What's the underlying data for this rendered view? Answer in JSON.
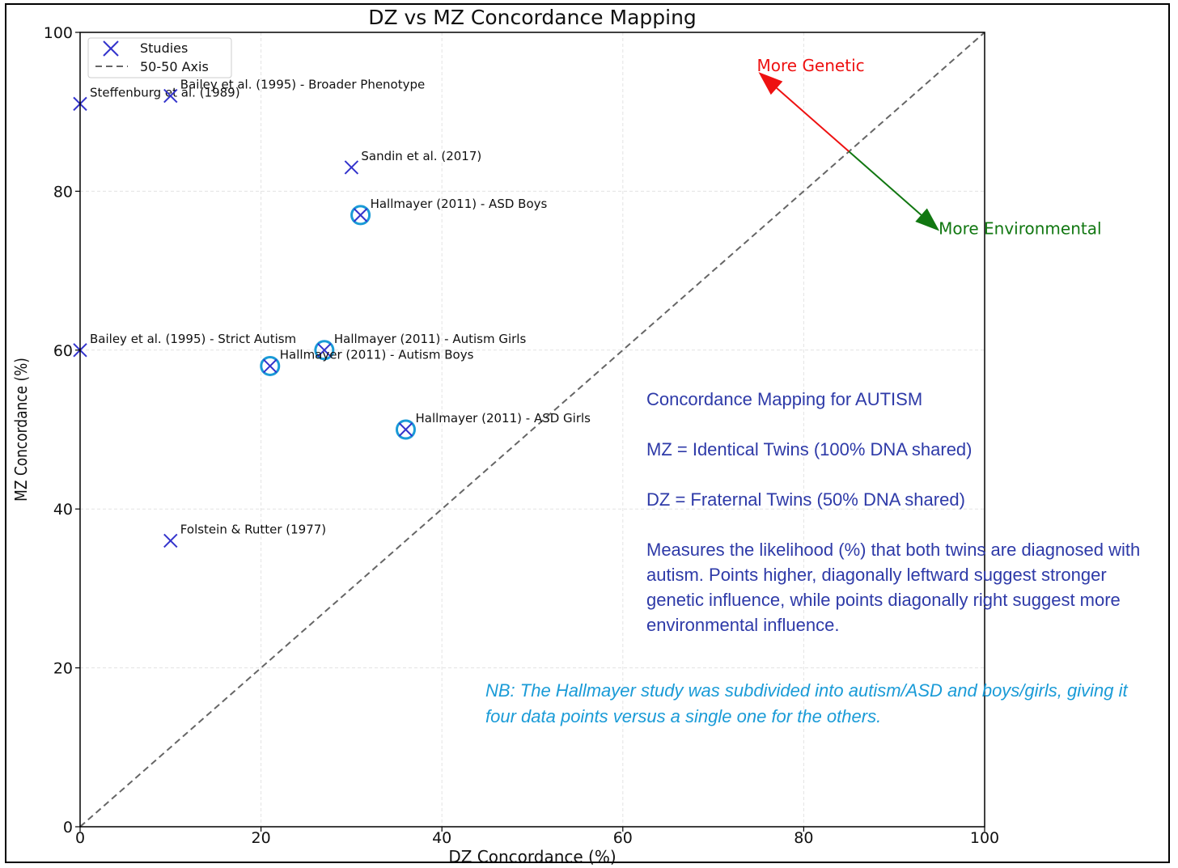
{
  "chart_data": {
    "type": "scatter",
    "title": "DZ vs MZ Concordance Mapping",
    "xlabel": "DZ Concordance (%)",
    "ylabel": "MZ Concordance (%)",
    "xlim": [
      0,
      100
    ],
    "ylim": [
      0,
      100
    ],
    "x_ticks": [
      "0",
      "20",
      "40",
      "60",
      "80",
      "100"
    ],
    "y_ticks": [
      "0",
      "20",
      "40",
      "60",
      "80",
      "100"
    ],
    "grid": true,
    "legend_position": "top-left",
    "legend": [
      {
        "label": "Studies",
        "marker": "x",
        "color": "#3333cc"
      },
      {
        "label": "50-50 Axis",
        "style": "dashed",
        "color": "#666666"
      }
    ],
    "reference_line": {
      "name": "50-50 Axis",
      "x": [
        0,
        100
      ],
      "y": [
        0,
        100
      ]
    },
    "series": [
      {
        "name": "Studies",
        "points": [
          {
            "label": "Steffenburg et al. (1989)",
            "x": 0,
            "y": 91,
            "circled": false
          },
          {
            "label": "Bailey et al. (1995) - Broader Phenotype",
            "x": 10,
            "y": 92,
            "circled": false
          },
          {
            "label": "Sandin et al. (2017)",
            "x": 30,
            "y": 83,
            "circled": false
          },
          {
            "label": "Hallmayer (2011) - ASD Boys",
            "x": 31,
            "y": 77,
            "circled": true
          },
          {
            "label": "Bailey et al. (1995) - Strict Autism",
            "x": 0,
            "y": 60,
            "circled": false
          },
          {
            "label": "Hallmayer (2011) - Autism Girls",
            "x": 27,
            "y": 60,
            "circled": true
          },
          {
            "label": "Hallmayer (2011) - Autism Boys",
            "x": 21,
            "y": 58,
            "circled": true
          },
          {
            "label": "Hallmayer (2011) - ASD Girls",
            "x": 36,
            "y": 50,
            "circled": true
          },
          {
            "label": "Folstein & Rutter (1977)",
            "x": 10,
            "y": 36,
            "circled": false
          }
        ]
      }
    ],
    "annotations": {
      "genetic_arrow": {
        "label": "More Genetic",
        "color": "#ee1111",
        "from": [
          85,
          85
        ],
        "to": [
          75,
          95
        ]
      },
      "environmental_arrow": {
        "label": "More Environmental",
        "color": "#117711",
        "from": [
          85,
          85
        ],
        "to": [
          95,
          75
        ]
      }
    },
    "colors": {
      "marker": "#3333cc",
      "circle": "#1a9bd7",
      "reference": "#666666"
    }
  },
  "info_box": {
    "line1": "Concordance Mapping for AUTISM",
    "line2": "MZ = Identical Twins (100% DNA shared)",
    "line3": "DZ = Fraternal Twins (50% DNA shared)",
    "line4": "Measures the likelihood (%) that both twins are diagnosed with autism.  Points higher, diagonally leftward suggest stronger genetic influence, while points diagonally right suggest more environmental influence."
  },
  "note": "NB: The Hallmayer study was subdivided into autism/ASD and boys/girls, giving it four  data points versus a single one for the others."
}
